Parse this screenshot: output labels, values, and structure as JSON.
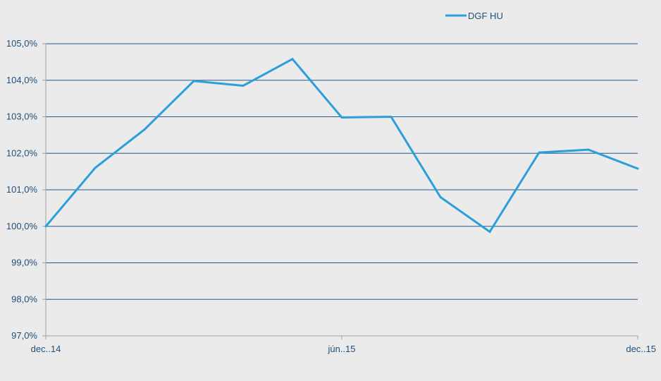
{
  "chart_data": {
    "type": "line",
    "title": "",
    "xlabel": "",
    "ylabel": "",
    "legend_position": "top-right",
    "grid": true,
    "ylim": [
      97.0,
      105.0
    ],
    "y_ticks": [
      97.0,
      98.0,
      99.0,
      100.0,
      101.0,
      102.0,
      103.0,
      104.0,
      105.0
    ],
    "y_tick_labels": [
      "97,0%",
      "98,0%",
      "99,0%",
      "100,0%",
      "101,0%",
      "102,0%",
      "103,0%",
      "104,0%",
      "105,0%"
    ],
    "x_tick_labels": [
      "dec..14",
      "jún..15",
      "dec..15"
    ],
    "x_tick_indices": [
      0,
      6,
      12
    ],
    "series": [
      {
        "name": "DGF HU",
        "color": "#2a9fd9",
        "values": [
          100.0,
          101.6,
          102.65,
          103.98,
          103.85,
          104.58,
          102.98,
          103.0,
          100.8,
          99.85,
          102.02,
          102.1,
          101.58
        ]
      }
    ],
    "colors": {
      "background": "#ebebeb",
      "grid": "#245a8a",
      "axis": "#a0a0a0",
      "text": "#1f4f7a"
    }
  }
}
